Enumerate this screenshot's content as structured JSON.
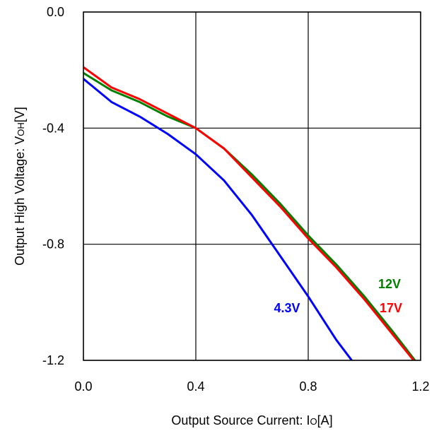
{
  "chart_data": {
    "type": "line",
    "xlabel": "Output Source Current: Io[A]",
    "xlabel_parts": {
      "prefix": "Output Source Current: I",
      "sub": "O",
      "suffix": "[A]"
    },
    "ylabel": "Output High Voltage: VOH[V]",
    "ylabel_parts": {
      "prefix": "Output High Voltage: V",
      "sub": "OH",
      "suffix": "[V]"
    },
    "xlim": [
      0.0,
      1.2
    ],
    "ylim": [
      -1.2,
      0.0
    ],
    "x_ticks": [
      "0.0",
      "0.4",
      "0.8",
      "1.2"
    ],
    "y_ticks": [
      "0.0",
      "-0.4",
      "-0.8",
      "-1.2"
    ],
    "grid": true,
    "series": [
      {
        "name": "4.3V",
        "color": "#0000ff",
        "x": [
          0.0,
          0.1,
          0.2,
          0.3,
          0.4,
          0.5,
          0.6,
          0.7,
          0.8,
          0.9,
          0.955
        ],
        "y": [
          -0.23,
          -0.31,
          -0.36,
          -0.42,
          -0.49,
          -0.58,
          -0.7,
          -0.84,
          -0.98,
          -1.13,
          -1.2
        ]
      },
      {
        "name": "12V",
        "color": "#008000",
        "x": [
          0.0,
          0.1,
          0.2,
          0.3,
          0.4,
          0.5,
          0.6,
          0.7,
          0.8,
          0.9,
          1.0,
          1.1,
          1.18
        ],
        "y": [
          -0.21,
          -0.27,
          -0.31,
          -0.36,
          -0.4,
          -0.47,
          -0.56,
          -0.66,
          -0.77,
          -0.87,
          -0.98,
          -1.1,
          -1.2
        ]
      },
      {
        "name": "17V",
        "color": "#ff0000",
        "x": [
          0.0,
          0.1,
          0.2,
          0.3,
          0.4,
          0.5,
          0.6,
          0.7,
          0.8,
          0.9,
          1.0,
          1.1,
          1.175
        ],
        "y": [
          -0.19,
          -0.26,
          -0.3,
          -0.35,
          -0.4,
          -0.47,
          -0.57,
          -0.67,
          -0.78,
          -0.88,
          -0.99,
          -1.11,
          -1.2
        ]
      }
    ]
  }
}
